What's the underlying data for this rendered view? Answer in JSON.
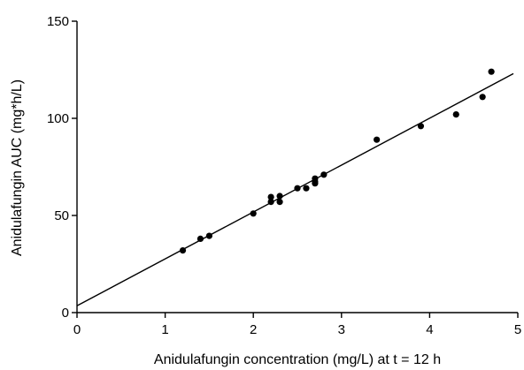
{
  "chart_data": {
    "type": "scatter",
    "xlabel": "Anidulafungin concentration (mg/L) at t = 12 h",
    "ylabel": "Anidulafungin AUC (mg*h/L)",
    "xlim": [
      0,
      5
    ],
    "ylim": [
      0,
      150
    ],
    "x_ticks": [
      0,
      1,
      2,
      3,
      4,
      5
    ],
    "y_ticks": [
      0,
      50,
      100,
      150
    ],
    "x_tick_labels": [
      "0",
      "1",
      "2",
      "3",
      "4",
      "5"
    ],
    "y_tick_labels": [
      "0",
      "50",
      "100",
      "150"
    ],
    "grid": false,
    "point_color": "#000000",
    "points": [
      {
        "x": 1.2,
        "y": 32
      },
      {
        "x": 1.4,
        "y": 38
      },
      {
        "x": 1.5,
        "y": 39.5
      },
      {
        "x": 2.0,
        "y": 51
      },
      {
        "x": 2.2,
        "y": 57
      },
      {
        "x": 2.2,
        "y": 59.5
      },
      {
        "x": 2.3,
        "y": 57
      },
      {
        "x": 2.3,
        "y": 60
      },
      {
        "x": 2.5,
        "y": 64
      },
      {
        "x": 2.6,
        "y": 64
      },
      {
        "x": 2.7,
        "y": 66.5
      },
      {
        "x": 2.7,
        "y": 67.5
      },
      {
        "x": 2.7,
        "y": 69
      },
      {
        "x": 2.8,
        "y": 71
      },
      {
        "x": 3.4,
        "y": 89
      },
      {
        "x": 3.9,
        "y": 96
      },
      {
        "x": 4.3,
        "y": 102
      },
      {
        "x": 4.6,
        "y": 111
      },
      {
        "x": 4.7,
        "y": 124
      }
    ],
    "fit_line": {
      "x": [
        0,
        4.95
      ],
      "y": [
        3.5,
        123
      ]
    }
  }
}
